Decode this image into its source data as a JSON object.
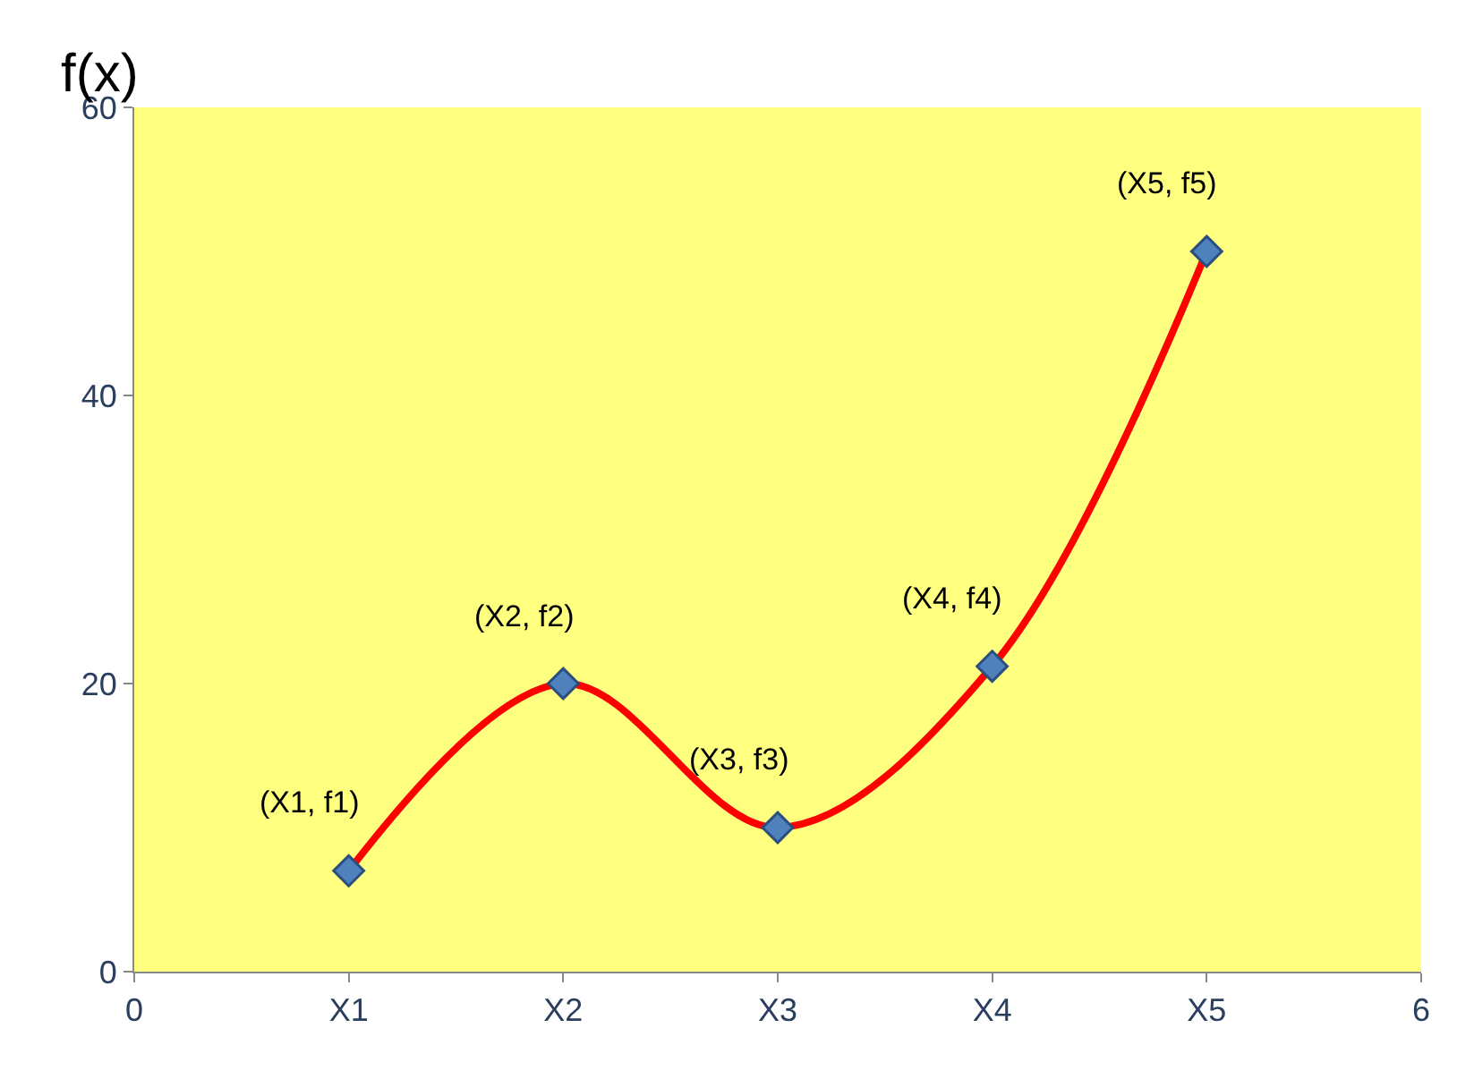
{
  "chart_data": {
    "type": "line",
    "ylabel": "f(x)",
    "x": [
      1,
      2,
      3,
      4,
      5
    ],
    "series": [
      {
        "color": "#ff0000",
        "values": [
          7,
          20,
          10,
          21.2,
          50
        ]
      }
    ],
    "xlim": [
      0,
      6
    ],
    "xticks": [
      0,
      {
        "value": 1,
        "label": "X1"
      },
      {
        "value": 2,
        "label": "X2"
      },
      {
        "value": 3,
        "label": "X3"
      },
      {
        "value": 4,
        "label": "X4"
      },
      {
        "value": 5,
        "label": "X5"
      },
      6
    ],
    "ylim": [
      0,
      60
    ],
    "yticks": [
      0,
      20,
      40,
      60
    ],
    "marker": "diamond",
    "line_style": "solid",
    "grid": false,
    "legend": false,
    "annotations": [
      {
        "text": "(X1, f1)",
        "x": 1,
        "y": 7
      },
      {
        "text": "(X2, f2)",
        "x": 2,
        "y": 20
      },
      {
        "text": "(X3, f3)",
        "x": 3,
        "y": 10
      },
      {
        "text": "(X4, f4)",
        "x": 4,
        "y": 21.2
      },
      {
        "text": "(X5, f5)",
        "x": 5,
        "y": 50
      }
    ]
  }
}
